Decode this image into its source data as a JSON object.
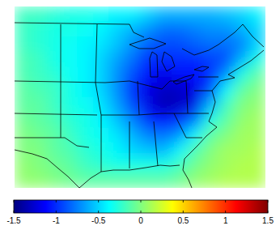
{
  "chart_data": {
    "type": "heatmap",
    "tick_labels": false,
    "cells": [
      [
        -0.2,
        -0.2,
        -0.25,
        -0.3,
        -0.3,
        -0.35,
        -0.4,
        -0.4,
        -0.5,
        -0.6,
        -0.6,
        -0.6,
        -0.6,
        -0.55,
        -0.5,
        -0.4
      ],
      [
        -0.2,
        -0.25,
        -0.3,
        -0.3,
        -0.35,
        -0.4,
        -0.5,
        -0.6,
        -0.7,
        -0.8,
        -0.8,
        -0.75,
        -0.7,
        -0.7,
        -0.6,
        -0.5
      ],
      [
        -0.2,
        -0.25,
        -0.3,
        -0.35,
        -0.4,
        -0.45,
        -0.55,
        -0.7,
        -0.85,
        -0.9,
        -0.9,
        -0.85,
        -0.8,
        -0.8,
        -0.75,
        -0.5
      ],
      [
        -0.15,
        -0.2,
        -0.3,
        -0.35,
        -0.4,
        -0.5,
        -0.65,
        -0.8,
        -1.0,
        -1.0,
        -1.0,
        -1.0,
        -0.95,
        -0.9,
        -0.6,
        -0.3
      ],
      [
        -0.15,
        -0.2,
        -0.25,
        -0.35,
        -0.4,
        -0.5,
        -0.7,
        -0.9,
        -1.1,
        -1.2,
        -1.1,
        -1.1,
        -1.0,
        -0.7,
        -0.3,
        -0.1
      ],
      [
        -0.1,
        -0.15,
        -0.2,
        -0.3,
        -0.4,
        -0.5,
        -0.7,
        -1.0,
        -1.2,
        -1.3,
        -1.3,
        -1.2,
        -0.9,
        -0.4,
        -0.1,
        0.0
      ],
      [
        -0.1,
        -0.1,
        -0.2,
        -0.3,
        -0.35,
        -0.45,
        -0.65,
        -0.9,
        -1.2,
        -1.35,
        -1.3,
        -1.2,
        -0.6,
        -0.2,
        0.0,
        0.05
      ],
      [
        -0.05,
        -0.1,
        -0.15,
        -0.25,
        -0.3,
        -0.4,
        -0.55,
        -0.75,
        -1.0,
        -1.1,
        -1.0,
        -0.8,
        -0.3,
        -0.1,
        0.05,
        0.1
      ],
      [
        0.0,
        -0.05,
        -0.1,
        -0.2,
        -0.3,
        -0.35,
        -0.45,
        -0.6,
        -0.75,
        -0.8,
        -0.7,
        -0.4,
        -0.1,
        0.0,
        0.1,
        0.1
      ],
      [
        0.0,
        0.0,
        -0.1,
        -0.15,
        -0.25,
        -0.3,
        -0.4,
        -0.5,
        -0.55,
        -0.6,
        -0.4,
        -0.15,
        0.0,
        0.1,
        0.1,
        0.15
      ],
      [
        0.05,
        0.0,
        -0.05,
        -0.1,
        -0.2,
        -0.25,
        -0.3,
        -0.3,
        -0.3,
        -0.3,
        -0.2,
        -0.05,
        0.05,
        0.1,
        0.15,
        0.15
      ],
      [
        0.05,
        0.05,
        0.0,
        -0.05,
        -0.1,
        -0.1,
        -0.1,
        -0.1,
        -0.1,
        -0.1,
        -0.05,
        0.05,
        0.1,
        0.15,
        0.15,
        0.15
      ]
    ],
    "colorbar": {
      "range": [
        -1.5,
        1.5
      ],
      "ticks": [
        -1.5,
        -1,
        -0.5,
        0,
        0.5,
        1,
        1.5
      ]
    }
  }
}
